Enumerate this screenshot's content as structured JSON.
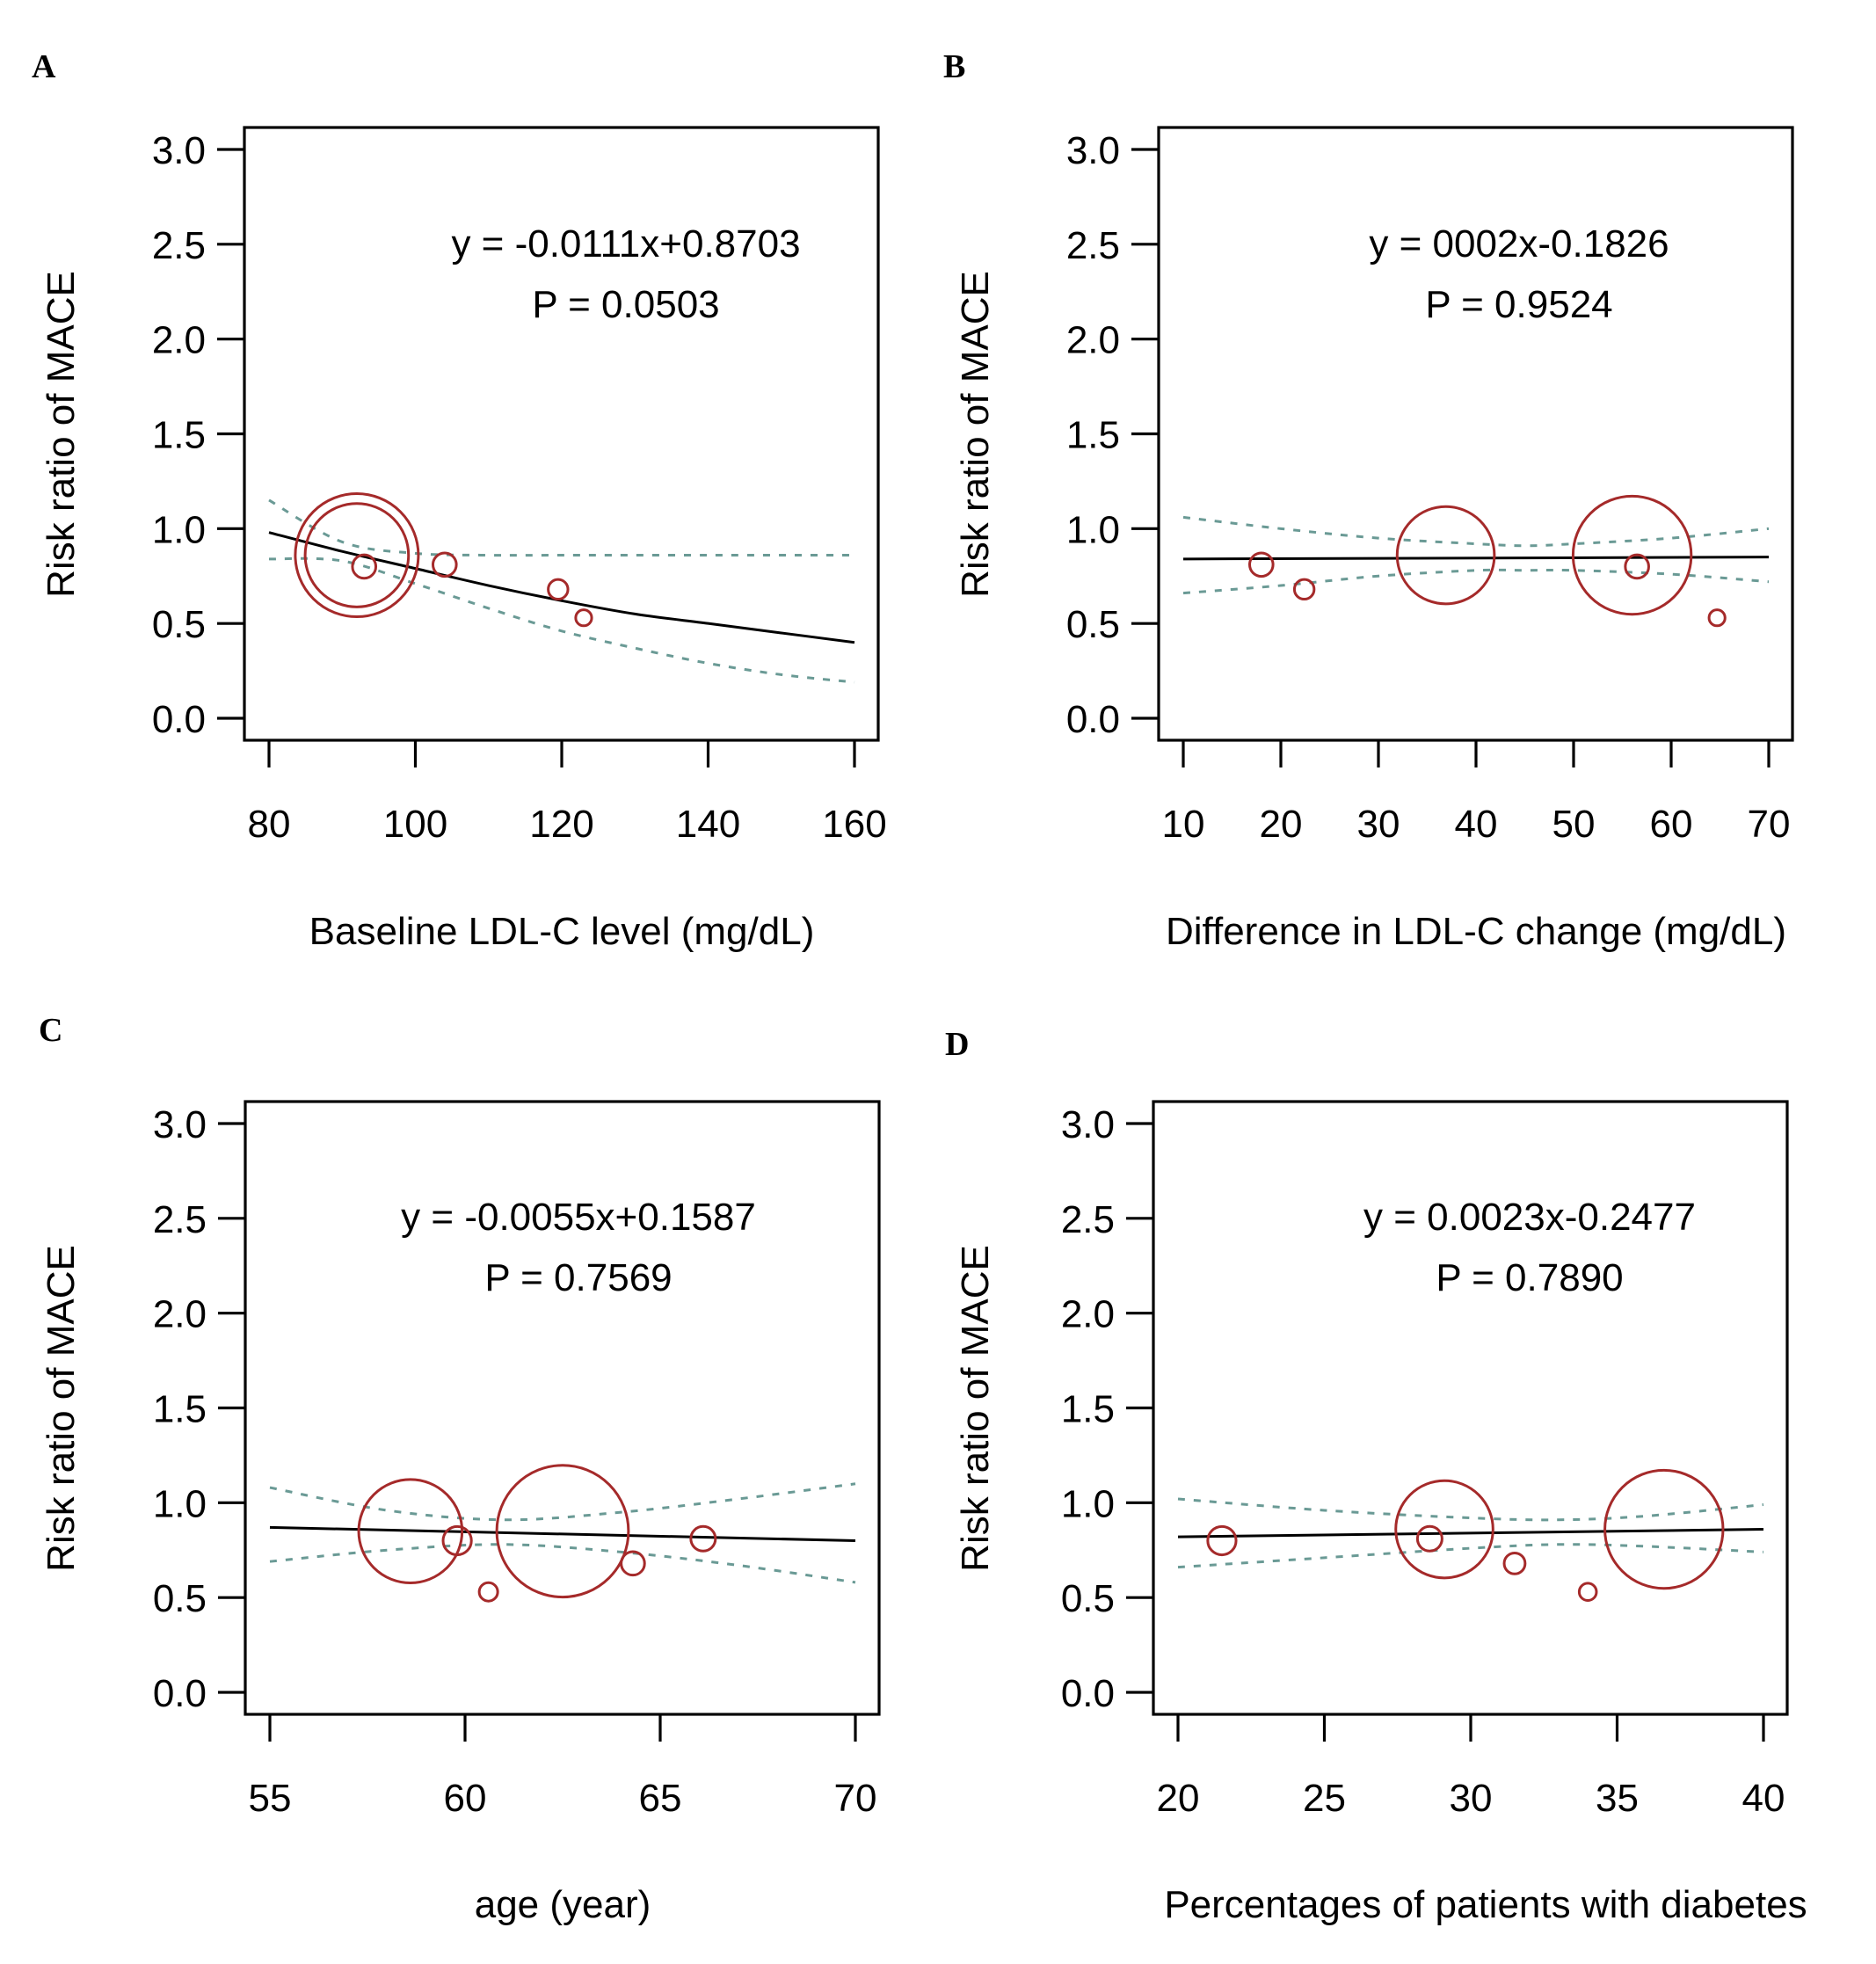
{
  "figure": {
    "type": "meta-regression bubble plots"
  },
  "chart_data": [
    {
      "type": "scatter",
      "panel": "A",
      "title": "",
      "xlabel": "Baseline LDL-C level (mg/dL)",
      "ylabel": "Risk ratio of MACE",
      "xlim": [
        80,
        160
      ],
      "ylim": [
        0,
        3.0
      ],
      "xticks": [
        "80",
        "100",
        "120",
        "140",
        "160"
      ],
      "xtick_values": [
        80,
        100,
        120,
        140,
        160
      ],
      "yticks": [
        "0.0",
        "0.5",
        "1.0",
        "1.5",
        "2.0",
        "2.5",
        "3.0"
      ],
      "ytick_values": [
        0,
        0.5,
        1.0,
        1.5,
        2.0,
        2.5,
        3.0
      ],
      "equation": "y = -0.0111x+0.8703",
      "p_value": "P = 0.0503",
      "points": [
        {
          "x": 92,
          "y": 0.86,
          "weight": 1.0
        },
        {
          "x": 92,
          "y": 0.86,
          "weight": 0.84
        },
        {
          "x": 93,
          "y": 0.8,
          "weight": 0.19
        },
        {
          "x": 104,
          "y": 0.81,
          "weight": 0.19
        },
        {
          "x": 119.5,
          "y": 0.68,
          "weight": 0.16
        },
        {
          "x": 123,
          "y": 0.53,
          "weight": 0.13
        }
      ],
      "regression": {
        "x": [
          80,
          90,
          100,
          110,
          120,
          130,
          140,
          150,
          160
        ],
        "y": [
          0.98,
          0.88,
          0.79,
          0.7,
          0.62,
          0.55,
          0.5,
          0.45,
          0.4
        ]
      },
      "ci_upper": {
        "x": [
          80,
          90,
          100,
          110,
          120,
          140,
          160
        ],
        "y": [
          1.15,
          0.93,
          0.87,
          0.86,
          0.86,
          0.86,
          0.86
        ]
      },
      "ci_lower": {
        "x": [
          80,
          90,
          100,
          110,
          120,
          130,
          140,
          150,
          160
        ],
        "y": [
          0.84,
          0.83,
          0.71,
          0.58,
          0.46,
          0.37,
          0.29,
          0.23,
          0.19
        ]
      },
      "colors": {
        "points": "#a52a2a",
        "regression": "#000000",
        "ci": "#6a9a95"
      }
    },
    {
      "type": "scatter",
      "panel": "B",
      "title": "",
      "xlabel": "Difference in LDL-C change (mg/dL)",
      "ylabel": "Risk ratio of MACE",
      "xlim": [
        10,
        70
      ],
      "ylim": [
        0,
        3.0
      ],
      "xticks": [
        "10",
        "20",
        "30",
        "40",
        "50",
        "60",
        "70"
      ],
      "xtick_values": [
        10,
        20,
        30,
        40,
        50,
        60,
        70
      ],
      "yticks": [
        "0.0",
        "0.5",
        "1.0",
        "1.5",
        "2.0",
        "2.5",
        "3.0"
      ],
      "ytick_values": [
        0,
        0.5,
        1.0,
        1.5,
        2.0,
        2.5,
        3.0
      ],
      "equation": "y = 0002x-0.1826",
      "p_value": "P = 0.9524",
      "points": [
        {
          "x": 18.0,
          "y": 0.81,
          "weight": 0.19
        },
        {
          "x": 22.4,
          "y": 0.68,
          "weight": 0.16
        },
        {
          "x": 36.9,
          "y": 0.86,
          "weight": 0.79
        },
        {
          "x": 56.0,
          "y": 0.86,
          "weight": 0.96
        },
        {
          "x": 56.5,
          "y": 0.8,
          "weight": 0.19
        },
        {
          "x": 64.7,
          "y": 0.53,
          "weight": 0.13
        }
      ],
      "regression": {
        "x": [
          10,
          70
        ],
        "y": [
          0.84,
          0.85
        ]
      },
      "ci_upper": {
        "x": [
          10,
          20,
          30,
          40,
          45,
          50,
          60,
          70
        ],
        "y": [
          1.06,
          1.0,
          0.95,
          0.92,
          0.91,
          0.92,
          0.95,
          1.0
        ]
      },
      "ci_lower": {
        "x": [
          10,
          20,
          30,
          40,
          45,
          50,
          60,
          70
        ],
        "y": [
          0.66,
          0.7,
          0.75,
          0.78,
          0.78,
          0.78,
          0.76,
          0.72
        ]
      },
      "colors": {
        "points": "#a52a2a",
        "regression": "#000000",
        "ci": "#6a9a95"
      }
    },
    {
      "type": "scatter",
      "panel": "C",
      "title": "",
      "xlabel": "age (year)",
      "ylabel": "Risk ratio of MACE",
      "xlim": [
        55,
        70
      ],
      "ylim": [
        0,
        3.0
      ],
      "xticks": [
        "55",
        "60",
        "65",
        "70"
      ],
      "xtick_values": [
        55,
        60,
        65,
        70
      ],
      "yticks": [
        "0.0",
        "0.5",
        "1.0",
        "1.5",
        "2.0",
        "2.5",
        "3.0"
      ],
      "ytick_values": [
        0,
        0.5,
        1.0,
        1.5,
        2.0,
        2.5,
        3.0
      ],
      "equation": "y = -0.0055x+0.1587",
      "p_value": "P = 0.7569",
      "points": [
        {
          "x": 58.6,
          "y": 0.85,
          "weight": 0.84
        },
        {
          "x": 59.8,
          "y": 0.8,
          "weight": 0.23
        },
        {
          "x": 60.6,
          "y": 0.53,
          "weight": 0.15
        },
        {
          "x": 62.5,
          "y": 0.85,
          "weight": 1.07
        },
        {
          "x": 64.3,
          "y": 0.68,
          "weight": 0.19
        },
        {
          "x": 66.1,
          "y": 0.81,
          "weight": 0.2
        }
      ],
      "regression": {
        "x": [
          55,
          70
        ],
        "y": [
          0.87,
          0.8
        ]
      },
      "ci_upper": {
        "x": [
          55,
          58,
          61,
          64,
          67,
          70
        ],
        "y": [
          1.08,
          0.96,
          0.91,
          0.95,
          1.02,
          1.1
        ]
      },
      "ci_lower": {
        "x": [
          55,
          58,
          61,
          64,
          67,
          70
        ],
        "y": [
          0.69,
          0.75,
          0.78,
          0.74,
          0.67,
          0.58
        ]
      },
      "colors": {
        "points": "#a52a2a",
        "regression": "#000000",
        "ci": "#6a9a95"
      }
    },
    {
      "type": "scatter",
      "panel": "D",
      "title": "",
      "xlabel": "Percentages of patients with diabetes",
      "ylabel": "Risk ratio of MACE",
      "xlim": [
        20,
        40
      ],
      "ylim": [
        0,
        3.0
      ],
      "xticks": [
        "20",
        "25",
        "30",
        "35",
        "40"
      ],
      "xtick_values": [
        20,
        25,
        30,
        35,
        40
      ],
      "yticks": [
        "0.0",
        "0.5",
        "1.0",
        "1.5",
        "2.0",
        "2.5",
        "3.0"
      ],
      "ytick_values": [
        0,
        0.5,
        1.0,
        1.5,
        2.0,
        2.5,
        3.0
      ],
      "equation": "y = 0.0023x-0.2477",
      "p_value": "P = 0.7890",
      "points": [
        {
          "x": 21.5,
          "y": 0.8,
          "weight": 0.23
        },
        {
          "x": 29.1,
          "y": 0.86,
          "weight": 0.79
        },
        {
          "x": 28.6,
          "y": 0.81,
          "weight": 0.2
        },
        {
          "x": 31.5,
          "y": 0.68,
          "weight": 0.17
        },
        {
          "x": 34.0,
          "y": 0.53,
          "weight": 0.14
        },
        {
          "x": 36.6,
          "y": 0.86,
          "weight": 0.96
        }
      ],
      "regression": {
        "x": [
          20,
          40
        ],
        "y": [
          0.82,
          0.86
        ]
      },
      "ci_upper": {
        "x": [
          20,
          25,
          30,
          33,
          36,
          40
        ],
        "y": [
          1.02,
          0.96,
          0.92,
          0.91,
          0.93,
          0.99
        ]
      },
      "ci_lower": {
        "x": [
          20,
          25,
          30,
          33,
          36,
          40
        ],
        "y": [
          0.66,
          0.71,
          0.76,
          0.78,
          0.77,
          0.74
        ]
      },
      "colors": {
        "points": "#a52a2a",
        "regression": "#000000",
        "ci": "#6a9a95"
      }
    }
  ],
  "panels": [
    {
      "letter": "A"
    },
    {
      "letter": "B"
    },
    {
      "letter": "C"
    },
    {
      "letter": "D"
    }
  ]
}
